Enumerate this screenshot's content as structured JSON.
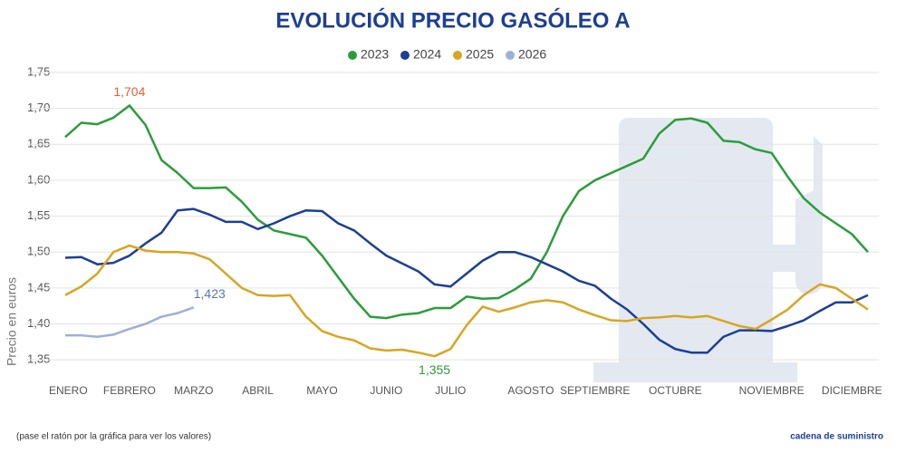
{
  "chart_data": {
    "type": "line",
    "title": "EVOLUCIÓN PRECIO GASÓLEO A",
    "y_label": "Precio en euros",
    "footnote": "(pase el ratón por la gráfica para ver los valores)",
    "brand": "cadena de suministro",
    "categories": [
      "ENERO",
      null,
      null,
      null,
      "FEBRERO",
      null,
      null,
      null,
      "MARZO",
      null,
      null,
      null,
      "ABRIL",
      null,
      null,
      null,
      "MAYO",
      null,
      null,
      null,
      "JUNIO",
      null,
      null,
      null,
      "JULIO",
      null,
      null,
      null,
      null,
      "AGOSTO",
      null,
      null,
      null,
      "SEPTIEMBRE",
      null,
      null,
      null,
      null,
      "OCTUBRE",
      null,
      null,
      null,
      null,
      null,
      "NOVIEMBRE",
      null,
      null,
      null,
      null,
      "DICIEMBRE",
      null
    ],
    "ylim": [
      1.33,
      1.75
    ],
    "yticks": [
      {
        "value": 1.35,
        "label": "1,35"
      },
      {
        "value": 1.4,
        "label": "1,40"
      },
      {
        "value": 1.45,
        "label": "1,45"
      },
      {
        "value": 1.5,
        "label": "1,50"
      },
      {
        "value": 1.55,
        "label": "1,55"
      },
      {
        "value": 1.6,
        "label": "1,60"
      },
      {
        "value": 1.65,
        "label": "1,65"
      },
      {
        "value": 1.7,
        "label": "1,70"
      },
      {
        "value": 1.75,
        "label": "1,75"
      }
    ],
    "grid": true,
    "legend": "top",
    "series": [
      {
        "name": "2023",
        "color": "#2a9d3a",
        "value_label_color": "#e0603a",
        "values": [
          1.66,
          1.68,
          1.678,
          1.687,
          1.704,
          1.677,
          1.628,
          1.61,
          1.589,
          1.589,
          1.59,
          1.57,
          1.545,
          1.53,
          1.525,
          1.52,
          1.495,
          1.465,
          1.435,
          1.41,
          1.408,
          1.413,
          1.415,
          1.422,
          1.422,
          1.438,
          1.435,
          1.436,
          1.448,
          1.463,
          1.5,
          1.55,
          1.585,
          1.6,
          1.61,
          1.62,
          1.63,
          1.665,
          1.684,
          1.686,
          1.68,
          1.655,
          1.653,
          1.643,
          1.638,
          1.605,
          1.575,
          1.555,
          1.54,
          1.525,
          1.5
        ],
        "value_labels": [
          null,
          null,
          null,
          null,
          "1,704",
          null,
          null,
          null,
          null,
          null,
          null,
          null,
          null,
          null,
          null,
          null,
          null,
          null,
          null,
          null,
          null,
          null,
          null,
          null,
          null,
          null,
          null,
          null,
          null,
          null,
          null,
          null,
          null,
          null,
          null,
          null,
          null,
          null,
          null,
          null,
          null,
          null,
          null,
          null,
          null,
          null,
          null,
          null,
          null,
          null,
          null
        ]
      },
      {
        "name": "2024",
        "color": "#1c3f94",
        "values": [
          1.492,
          1.493,
          1.483,
          1.485,
          1.495,
          1.512,
          1.527,
          1.558,
          1.56,
          1.552,
          1.542,
          1.542,
          1.532,
          1.54,
          1.55,
          1.558,
          1.557,
          1.54,
          1.53,
          1.512,
          1.495,
          1.484,
          1.473,
          1.455,
          1.452,
          1.47,
          1.488,
          1.5,
          1.5,
          1.493,
          1.483,
          1.473,
          1.46,
          1.453,
          1.435,
          1.42,
          1.4,
          1.378,
          1.365,
          1.36,
          1.36,
          1.382,
          1.391,
          1.391,
          1.39,
          1.397,
          1.405,
          1.418,
          1.43,
          1.43,
          1.44
        ]
      },
      {
        "name": "2025",
        "color": "#d9a521",
        "value_label_color": "#2a9d3a",
        "values": [
          1.44,
          1.452,
          1.47,
          1.5,
          1.509,
          1.502,
          1.5,
          1.5,
          1.498,
          1.49,
          1.47,
          1.45,
          1.44,
          1.439,
          1.44,
          1.41,
          1.39,
          1.382,
          1.377,
          1.366,
          1.363,
          1.364,
          1.36,
          1.355,
          1.365,
          1.398,
          1.424,
          1.417,
          1.423,
          1.43,
          1.433,
          1.43,
          1.42,
          1.412,
          1.405,
          1.404,
          1.408,
          1.409,
          1.411,
          1.409,
          1.411,
          1.404,
          1.397,
          1.393,
          1.406,
          1.42,
          1.44,
          1.455,
          1.45,
          1.435,
          1.42
        ],
        "value_labels": [
          null,
          null,
          null,
          null,
          null,
          null,
          null,
          null,
          null,
          null,
          null,
          null,
          null,
          null,
          null,
          null,
          null,
          null,
          null,
          null,
          null,
          null,
          null,
          "1,355",
          null,
          null,
          null,
          null,
          null,
          null,
          null,
          null,
          null,
          null,
          null,
          null,
          null,
          null,
          null,
          null,
          null,
          null,
          null,
          null,
          null,
          null,
          null,
          null,
          null,
          null,
          null
        ]
      },
      {
        "name": "2026",
        "color": "#9fb0d4",
        "value_label_color": "#5a78b0",
        "values": [
          1.384,
          1.384,
          1.382,
          1.385,
          1.393,
          1.4,
          1.41,
          1.415,
          1.423,
          null,
          null,
          null,
          null,
          null,
          null,
          null,
          null,
          null,
          null,
          null,
          null,
          null,
          null,
          null,
          null,
          null,
          null,
          null,
          null,
          null,
          null,
          null,
          null,
          null,
          null,
          null,
          null,
          null,
          null,
          null,
          null,
          null,
          null,
          null,
          null,
          null,
          null,
          null,
          null,
          null,
          null
        ],
        "value_labels": [
          null,
          null,
          null,
          null,
          null,
          null,
          null,
          null,
          "1,423",
          null,
          null,
          null,
          null,
          null,
          null,
          null,
          null,
          null,
          null,
          null,
          null,
          null,
          null,
          null,
          null,
          null,
          null,
          null,
          null,
          null,
          null,
          null,
          null,
          null,
          null,
          null,
          null,
          null,
          null,
          null,
          null,
          null,
          null,
          null,
          null,
          null,
          null,
          null,
          null,
          null,
          null
        ]
      }
    ]
  }
}
